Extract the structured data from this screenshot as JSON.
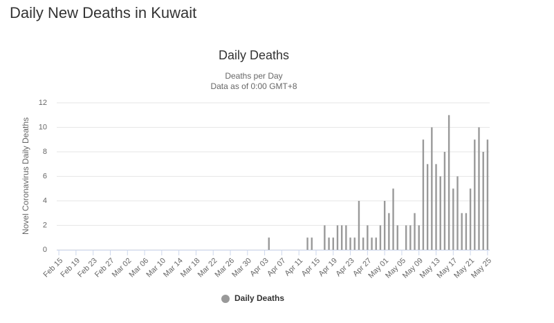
{
  "title": "Daily New Deaths in Kuwait",
  "chart_data": {
    "type": "bar",
    "title": "Daily Deaths",
    "subtitle": [
      "Deaths per Day",
      "Data as of 0:00 GMT+8"
    ],
    "y_label": "Novel Coronavirus Daily Deaths",
    "categories": [
      "Feb 15",
      null,
      null,
      null,
      "Feb 19",
      null,
      null,
      null,
      "Feb 23",
      null,
      null,
      null,
      "Feb 27",
      null,
      null,
      null,
      "Mar 02",
      null,
      null,
      null,
      "Mar 06",
      null,
      null,
      null,
      "Mar 10",
      null,
      null,
      null,
      "Mar 14",
      null,
      null,
      null,
      "Mar 18",
      null,
      null,
      null,
      "Mar 22",
      null,
      null,
      null,
      "Mar 26",
      null,
      null,
      null,
      "Mar 30",
      null,
      null,
      null,
      "Apr 03",
      null,
      null,
      null,
      "Apr 07",
      null,
      null,
      null,
      "Apr 11",
      null,
      null,
      null,
      "Apr 15",
      null,
      null,
      null,
      "Apr 19",
      null,
      null,
      null,
      "Apr 23",
      null,
      null,
      null,
      "Apr 27",
      null,
      null,
      null,
      "May 01",
      null,
      null,
      null,
      "May 05",
      null,
      null,
      null,
      "May 09",
      null,
      null,
      null,
      "May 13",
      null,
      null,
      null,
      "May 17",
      null,
      null,
      null,
      "May 21",
      null,
      null,
      null,
      "May 25"
    ],
    "series": [
      {
        "name": "Daily Deaths",
        "color": "#999999",
        "values": [
          0,
          0,
          0,
          0,
          0,
          0,
          0,
          0,
          0,
          0,
          0,
          0,
          0,
          0,
          0,
          0,
          0,
          0,
          0,
          0,
          0,
          0,
          0,
          0,
          0,
          0,
          0,
          0,
          0,
          0,
          0,
          0,
          0,
          0,
          0,
          0,
          0,
          0,
          0,
          0,
          0,
          0,
          0,
          0,
          0,
          0,
          0,
          0,
          0,
          1,
          0,
          0,
          0,
          0,
          0,
          0,
          0,
          0,
          1,
          1,
          0,
          0,
          2,
          1,
          1,
          2,
          2,
          2,
          1,
          1,
          4,
          1,
          2,
          1,
          1,
          2,
          4,
          3,
          5,
          2,
          0,
          2,
          2,
          3,
          2,
          9,
          7,
          10,
          7,
          6,
          8,
          11,
          5,
          6,
          3,
          3,
          5,
          9,
          10,
          8,
          9
        ]
      }
    ],
    "ylim": [
      0,
      12
    ],
    "yticks": [
      0,
      2,
      4,
      6,
      8,
      10,
      12
    ],
    "grid": true
  }
}
